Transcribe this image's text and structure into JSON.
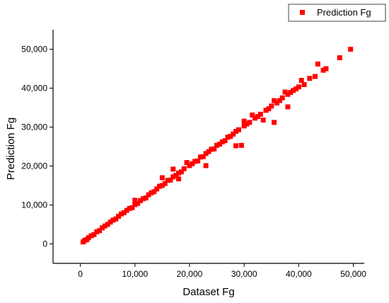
{
  "chart_data": {
    "type": "scatter",
    "title": "",
    "xlabel": "Dataset Fg",
    "ylabel": "Prediction Fg",
    "xlim": [
      -5000,
      52000
    ],
    "ylim": [
      -5000,
      55000
    ],
    "xticks": [
      0,
      10000,
      20000,
      30000,
      40000,
      50000
    ],
    "yticks": [
      0,
      10000,
      20000,
      30000,
      40000,
      50000
    ],
    "xtick_labels": [
      "0",
      "10,000",
      "20,000",
      "30,000",
      "40,000",
      "50,000"
    ],
    "ytick_labels": [
      "0",
      "10,000",
      "20,000",
      "30,000",
      "40,000",
      "50,000"
    ],
    "grid": false,
    "legend": {
      "position": "top-right",
      "entries": [
        "Prediction Fg"
      ]
    },
    "marker": "square",
    "series": [
      {
        "name": "Prediction Fg",
        "color": "#ff0000",
        "points": [
          [
            500,
            500
          ],
          [
            800,
            900
          ],
          [
            1200,
            1100
          ],
          [
            1500,
            1600
          ],
          [
            2000,
            2100
          ],
          [
            2500,
            2400
          ],
          [
            3000,
            3100
          ],
          [
            3500,
            3400
          ],
          [
            4000,
            4100
          ],
          [
            4500,
            4600
          ],
          [
            5000,
            5000
          ],
          [
            5500,
            5600
          ],
          [
            6000,
            6100
          ],
          [
            6500,
            6400
          ],
          [
            7000,
            7100
          ],
          [
            7500,
            7700
          ],
          [
            8000,
            8000
          ],
          [
            8500,
            8600
          ],
          [
            9000,
            9100
          ],
          [
            9500,
            9300
          ],
          [
            10000,
            10100
          ],
          [
            10000,
            11200
          ],
          [
            10500,
            10400
          ],
          [
            11000,
            11100
          ],
          [
            11500,
            11600
          ],
          [
            12000,
            11800
          ],
          [
            12500,
            12600
          ],
          [
            13000,
            13100
          ],
          [
            13500,
            13400
          ],
          [
            14000,
            14100
          ],
          [
            14500,
            14800
          ],
          [
            15000,
            15000
          ],
          [
            15000,
            17000
          ],
          [
            15500,
            15500
          ],
          [
            16000,
            16300
          ],
          [
            16500,
            16400
          ],
          [
            17000,
            17200
          ],
          [
            17000,
            19200
          ],
          [
            17500,
            17600
          ],
          [
            18000,
            16700
          ],
          [
            18000,
            18200
          ],
          [
            18500,
            18500
          ],
          [
            19000,
            19300
          ],
          [
            19500,
            20900
          ],
          [
            20000,
            20100
          ],
          [
            20500,
            20600
          ],
          [
            21000,
            21200
          ],
          [
            21500,
            21300
          ],
          [
            22000,
            22300
          ],
          [
            22500,
            22400
          ],
          [
            23000,
            23200
          ],
          [
            23000,
            20100
          ],
          [
            23500,
            23700
          ],
          [
            24000,
            24300
          ],
          [
            24500,
            24400
          ],
          [
            25000,
            25300
          ],
          [
            25500,
            25600
          ],
          [
            26000,
            26200
          ],
          [
            26500,
            26500
          ],
          [
            27000,
            27400
          ],
          [
            27500,
            27600
          ],
          [
            28000,
            28200
          ],
          [
            28500,
            28900
          ],
          [
            28500,
            25200
          ],
          [
            29000,
            29300
          ],
          [
            29500,
            25300
          ],
          [
            30000,
            30300
          ],
          [
            30000,
            31500
          ],
          [
            30500,
            30800
          ],
          [
            31000,
            31200
          ],
          [
            31500,
            33100
          ],
          [
            32000,
            32300
          ],
          [
            32500,
            32700
          ],
          [
            33000,
            33300
          ],
          [
            33500,
            31800
          ],
          [
            34000,
            34300
          ],
          [
            34500,
            34700
          ],
          [
            35000,
            35400
          ],
          [
            35500,
            31200
          ],
          [
            35500,
            36800
          ],
          [
            36000,
            36200
          ],
          [
            36500,
            36800
          ],
          [
            37000,
            37500
          ],
          [
            37500,
            39000
          ],
          [
            38000,
            35200
          ],
          [
            38000,
            38400
          ],
          [
            38500,
            38900
          ],
          [
            39000,
            39400
          ],
          [
            39500,
            39800
          ],
          [
            40000,
            40300
          ],
          [
            40500,
            42000
          ],
          [
            41000,
            40900
          ],
          [
            42000,
            42500
          ],
          [
            43000,
            43000
          ],
          [
            43500,
            46200
          ],
          [
            44500,
            44600
          ],
          [
            45000,
            45000
          ],
          [
            47500,
            47800
          ],
          [
            49500,
            50000
          ]
        ]
      }
    ]
  }
}
